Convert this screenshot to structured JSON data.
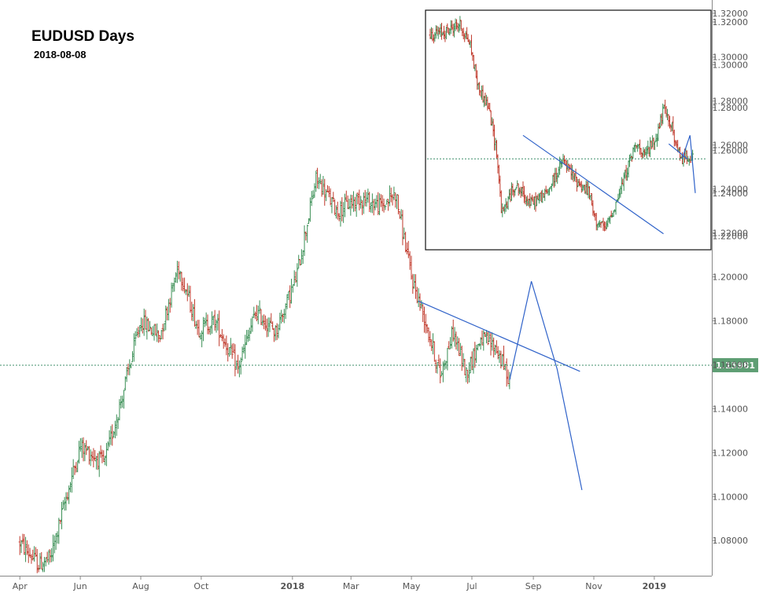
{
  "header": {
    "title": "EUDUSD Days",
    "date": "2018-08-08"
  },
  "colors": {
    "up": "#3a8f55",
    "down": "#c0392b",
    "trendline": "#2f62c9",
    "level": "#3f8f6b",
    "price_badge": "#5e9e73",
    "axis_text": "#555555"
  },
  "chart_data": [
    {
      "type": "candlestick",
      "title": "EUDUSD Days",
      "subtitle": "2018-08-08",
      "y_axis_side": "right",
      "ylim": [
        1.064,
        1.326
      ],
      "y_ticks": [
        "1.32000",
        "1.30000",
        "1.28000",
        "1.26000",
        "1.24000",
        "1.22000",
        "1.20000",
        "1.18000",
        "1.16000",
        "1.14000",
        "1.12000",
        "1.10000",
        "1.08000"
      ],
      "x_ticks": [
        "Apr",
        "Jun",
        "Aug",
        "Oct",
        "2018",
        "Mar",
        "May",
        "Jul",
        "Sep",
        "Nov",
        "2019"
      ],
      "current_price": "1.15981",
      "price_path": [
        [
          "2017-04-01",
          1.079
        ],
        [
          "2017-04-20",
          1.069
        ],
        [
          "2017-05-02",
          1.072
        ],
        [
          "2017-05-15",
          1.095
        ],
        [
          "2017-06-01",
          1.123
        ],
        [
          "2017-06-25",
          1.115
        ],
        [
          "2017-07-10",
          1.14
        ],
        [
          "2017-08-01",
          1.18
        ],
        [
          "2017-08-20",
          1.173
        ],
        [
          "2017-09-08",
          1.205
        ],
        [
          "2017-09-28",
          1.176
        ],
        [
          "2017-10-15",
          1.18
        ],
        [
          "2017-11-07",
          1.158
        ],
        [
          "2017-11-25",
          1.184
        ],
        [
          "2017-12-15",
          1.175
        ],
        [
          "2018-01-05",
          1.2
        ],
        [
          "2018-01-25",
          1.245
        ],
        [
          "2018-02-15",
          1.23
        ],
        [
          "2018-03-10",
          1.236
        ],
        [
          "2018-04-01",
          1.232
        ],
        [
          "2018-04-15",
          1.238
        ],
        [
          "2018-05-01",
          1.2
        ],
        [
          "2018-05-15",
          1.18
        ],
        [
          "2018-05-30",
          1.155
        ],
        [
          "2018-06-12",
          1.175
        ],
        [
          "2018-06-25",
          1.156
        ],
        [
          "2018-07-10",
          1.172
        ],
        [
          "2018-07-25",
          1.168
        ],
        [
          "2018-08-08",
          1.153
        ]
      ],
      "projection": [
        [
          "2018-08-08",
          1.153
        ],
        [
          "2018-08-30",
          1.198
        ],
        [
          "2018-09-25",
          1.158
        ],
        [
          "2018-10-20",
          1.103
        ]
      ],
      "trendline": [
        [
          "2018-05-08",
          1.189
        ],
        [
          "2018-10-18",
          1.157
        ]
      ],
      "horizontal_level": 1.15981
    },
    {
      "type": "candlestick",
      "inset": true,
      "y_axis_side": "right",
      "ylim": [
        1.2135,
        1.3255
      ],
      "y_ticks": [
        "1.32000",
        "1.30000",
        "1.28000",
        "1.26000",
        "1.24000",
        "1.22000"
      ],
      "price_path": [
        [
          0.0,
          1.314
        ],
        [
          0.05,
          1.315
        ],
        [
          0.11,
          1.319
        ],
        [
          0.15,
          1.31
        ],
        [
          0.18,
          1.29
        ],
        [
          0.22,
          1.28
        ],
        [
          0.25,
          1.26
        ],
        [
          0.27,
          1.23
        ],
        [
          0.32,
          1.244
        ],
        [
          0.38,
          1.235
        ],
        [
          0.44,
          1.24
        ],
        [
          0.5,
          1.255
        ],
        [
          0.55,
          1.246
        ],
        [
          0.6,
          1.24
        ],
        [
          0.62,
          1.228
        ],
        [
          0.66,
          1.223
        ],
        [
          0.7,
          1.235
        ],
        [
          0.74,
          1.25
        ],
        [
          0.78,
          1.265
        ],
        [
          0.8,
          1.256
        ],
        [
          0.83,
          1.262
        ],
        [
          0.85,
          1.265
        ],
        [
          0.88,
          1.279
        ],
        [
          0.91,
          1.272
        ],
        [
          0.93,
          1.26
        ],
        [
          0.95,
          1.256
        ],
        [
          0.97,
          1.258
        ],
        [
          0.99,
          1.256
        ]
      ],
      "trendline_1": [
        [
          0.35,
          1.267
        ],
        [
          0.88,
          1.221
        ]
      ],
      "trendline_2": [
        [
          0.9,
          1.263
        ],
        [
          0.97,
          1.256
        ]
      ],
      "projection": [
        [
          0.95,
          1.256
        ],
        [
          0.98,
          1.267
        ],
        [
          1.0,
          1.24
        ]
      ],
      "horizontal_level": 1.256
    }
  ]
}
